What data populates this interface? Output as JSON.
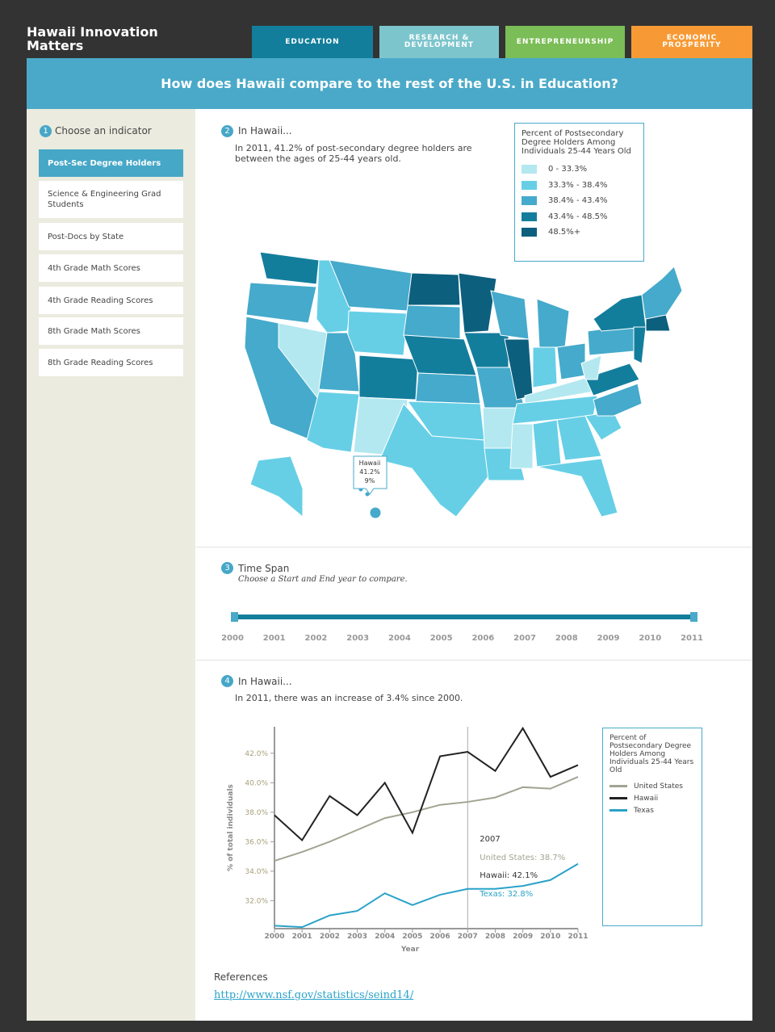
{
  "header": {
    "title": "Hawaii Innovation Matters",
    "tabs": [
      "EDUCATION",
      "RESEARCH & DEVELOPMENT",
      "ENTREPRENEURSHIP",
      "ECONOMIC PROSPERITY"
    ]
  },
  "banner": "How does Hawaii compare to the rest of the U.S. in Education?",
  "sidebar": {
    "step": "1",
    "heading": "Choose an indicator",
    "items": [
      "Post-Sec Degree Holders",
      "Science & Engineering Grad Students",
      "Post-Docs by State",
      "4th Grade Math Scores",
      "4th Grade Reading Scores",
      "8th Grade Math Scores",
      "8th Grade Reading Scores"
    ]
  },
  "map_section": {
    "step": "2",
    "heading": "In Hawaii...",
    "text": "In 2011, 41.2% of post-secondary degree holders are between the ages of 25-44 years old.",
    "legend_title": "Percent of Postsecondary Degree Holders Among Individuals 25-44 Years Old",
    "legend": [
      {
        "label": "0 - 33.3%",
        "color": "#b3e8f0"
      },
      {
        "label": "33.3% - 38.4%",
        "color": "#66cfe6"
      },
      {
        "label": "38.4% - 43.4%",
        "color": "#45aacb"
      },
      {
        "label": "43.4% - 48.5%",
        "color": "#137e9c"
      },
      {
        "label": "48.5%+",
        "color": "#0d5f7e"
      }
    ],
    "tooltip": [
      "Hawaii",
      "41.2%",
      "9%"
    ]
  },
  "time_span": {
    "step": "3",
    "heading": "Time Span",
    "hint": "Choose a Start and End year to compare.",
    "years": [
      2000,
      2001,
      2002,
      2003,
      2004,
      2005,
      2006,
      2007,
      2008,
      2009,
      2010,
      2011
    ]
  },
  "trend": {
    "step": "4",
    "heading": "In Hawaii...",
    "text": "In 2011, there was an increase of 3.4% since 2000."
  },
  "chart_data": {
    "type": "line",
    "legend_title": "Percent of Postsecondary Degree Holders Among Individuals 25-44 Years Old",
    "x_label": "Year",
    "y_label": "% of total individuals",
    "x": [
      2000,
      2001,
      2002,
      2003,
      2004,
      2005,
      2006,
      2007,
      2008,
      2009,
      2010,
      2011
    ],
    "xlim": [
      2000,
      2011
    ],
    "xticks": [
      2000,
      2001,
      2002,
      2003,
      2004,
      2005,
      2006,
      2007,
      2008,
      2009,
      2010,
      2011
    ],
    "ylim": [
      30.1,
      43.8
    ],
    "yticks": [
      {
        "value": 32,
        "label": "32.0%"
      },
      {
        "value": 34,
        "label": "34.0%"
      },
      {
        "value": 36,
        "label": "36.0%"
      },
      {
        "value": 38,
        "label": "38.0%"
      },
      {
        "value": 40,
        "label": "40.0%"
      },
      {
        "value": 42,
        "label": "42.0%"
      }
    ],
    "series": [
      {
        "name": "United States",
        "color": "#a3a392",
        "values": [
          34.7,
          35.3,
          36.0,
          36.8,
          37.6,
          38.0,
          38.5,
          38.7,
          39.0,
          39.7,
          39.6,
          40.4
        ]
      },
      {
        "name": "Hawaii",
        "color": "#222222",
        "values": [
          37.8,
          36.1,
          39.1,
          37.8,
          40.0,
          36.6,
          41.8,
          42.1,
          40.8,
          43.7,
          40.4,
          41.2
        ]
      },
      {
        "name": "Texas",
        "color": "#2aa2c8",
        "values": [
          30.3,
          30.2,
          31.0,
          31.3,
          32.5,
          31.7,
          32.4,
          32.8,
          32.8,
          33.0,
          33.4,
          34.5
        ]
      }
    ],
    "annotation": {
      "x": 2007,
      "entries": [
        "United States: 38.7%",
        "Hawaii: 42.1%",
        "Texas: 32.8%"
      ]
    }
  },
  "references": {
    "heading": "References",
    "link": "http://www.nsf.gov/statistics/seind14/"
  }
}
